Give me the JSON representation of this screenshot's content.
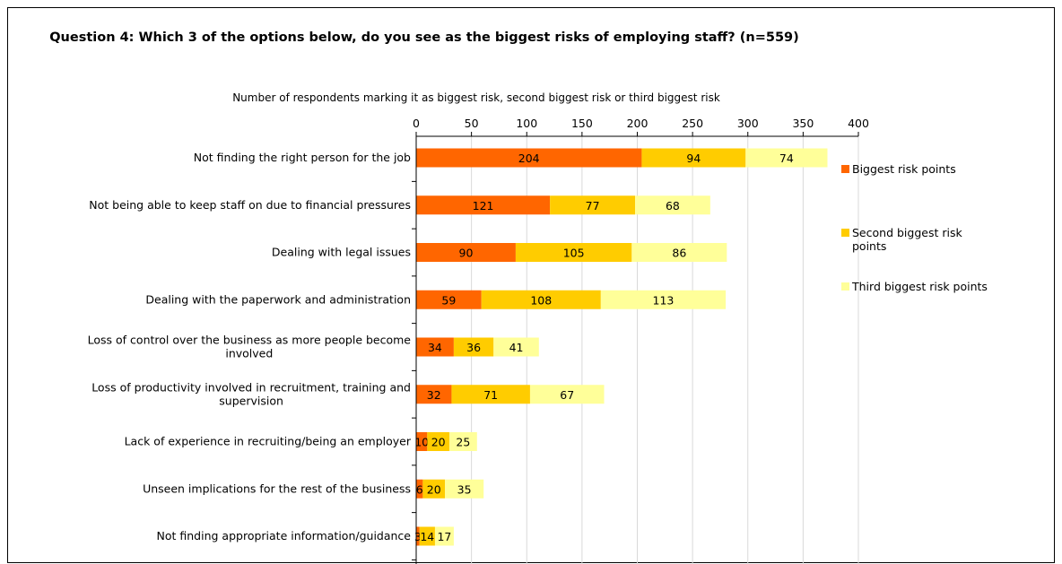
{
  "chart_data": {
    "type": "bar",
    "orientation": "horizontal",
    "stacked": true,
    "title": "Question 4:  Which 3 of the options below, do you see as the biggest risks of employing staff? (n=559)",
    "xlabel": "Number of respondents marking it as biggest risk, second biggest risk or third biggest risk",
    "ylabel": "",
    "xlim": [
      0,
      400
    ],
    "xticks": [
      0,
      50,
      100,
      150,
      200,
      250,
      300,
      350,
      400
    ],
    "x_axis_position": "top",
    "grid": true,
    "legend_position": "right",
    "categories": [
      [
        "Not finding the right person for the job"
      ],
      [
        "Not being able to keep staff on due to financial pressures"
      ],
      [
        "Dealing with legal issues"
      ],
      [
        "Dealing with the paperwork and administration"
      ],
      [
        "Loss of control over the business as more people become",
        "involved"
      ],
      [
        "Loss of productivity involved in recruitment, training and",
        "supervision"
      ],
      [
        "Lack of experience in recruiting/being an employer"
      ],
      [
        "Unseen implications for the rest of the business"
      ],
      [
        "Not finding appropriate information/guidance"
      ]
    ],
    "series": [
      {
        "name": "Biggest risk points",
        "color": "#FF6600",
        "values": [
          204,
          121,
          90,
          59,
          34,
          32,
          10,
          6,
          3
        ]
      },
      {
        "name": "Second biggest risk points",
        "color": "#FFCC00",
        "values": [
          94,
          77,
          105,
          108,
          36,
          71,
          20,
          20,
          14
        ]
      },
      {
        "name": "Third biggest risk points",
        "color": "#FFFF99",
        "values": [
          74,
          68,
          86,
          113,
          41,
          67,
          25,
          35,
          17
        ]
      }
    ],
    "legend_labels": [
      [
        "Biggest risk points"
      ],
      [
        "Second biggest risk",
        "points"
      ],
      [
        "Third biggest risk points"
      ]
    ]
  }
}
